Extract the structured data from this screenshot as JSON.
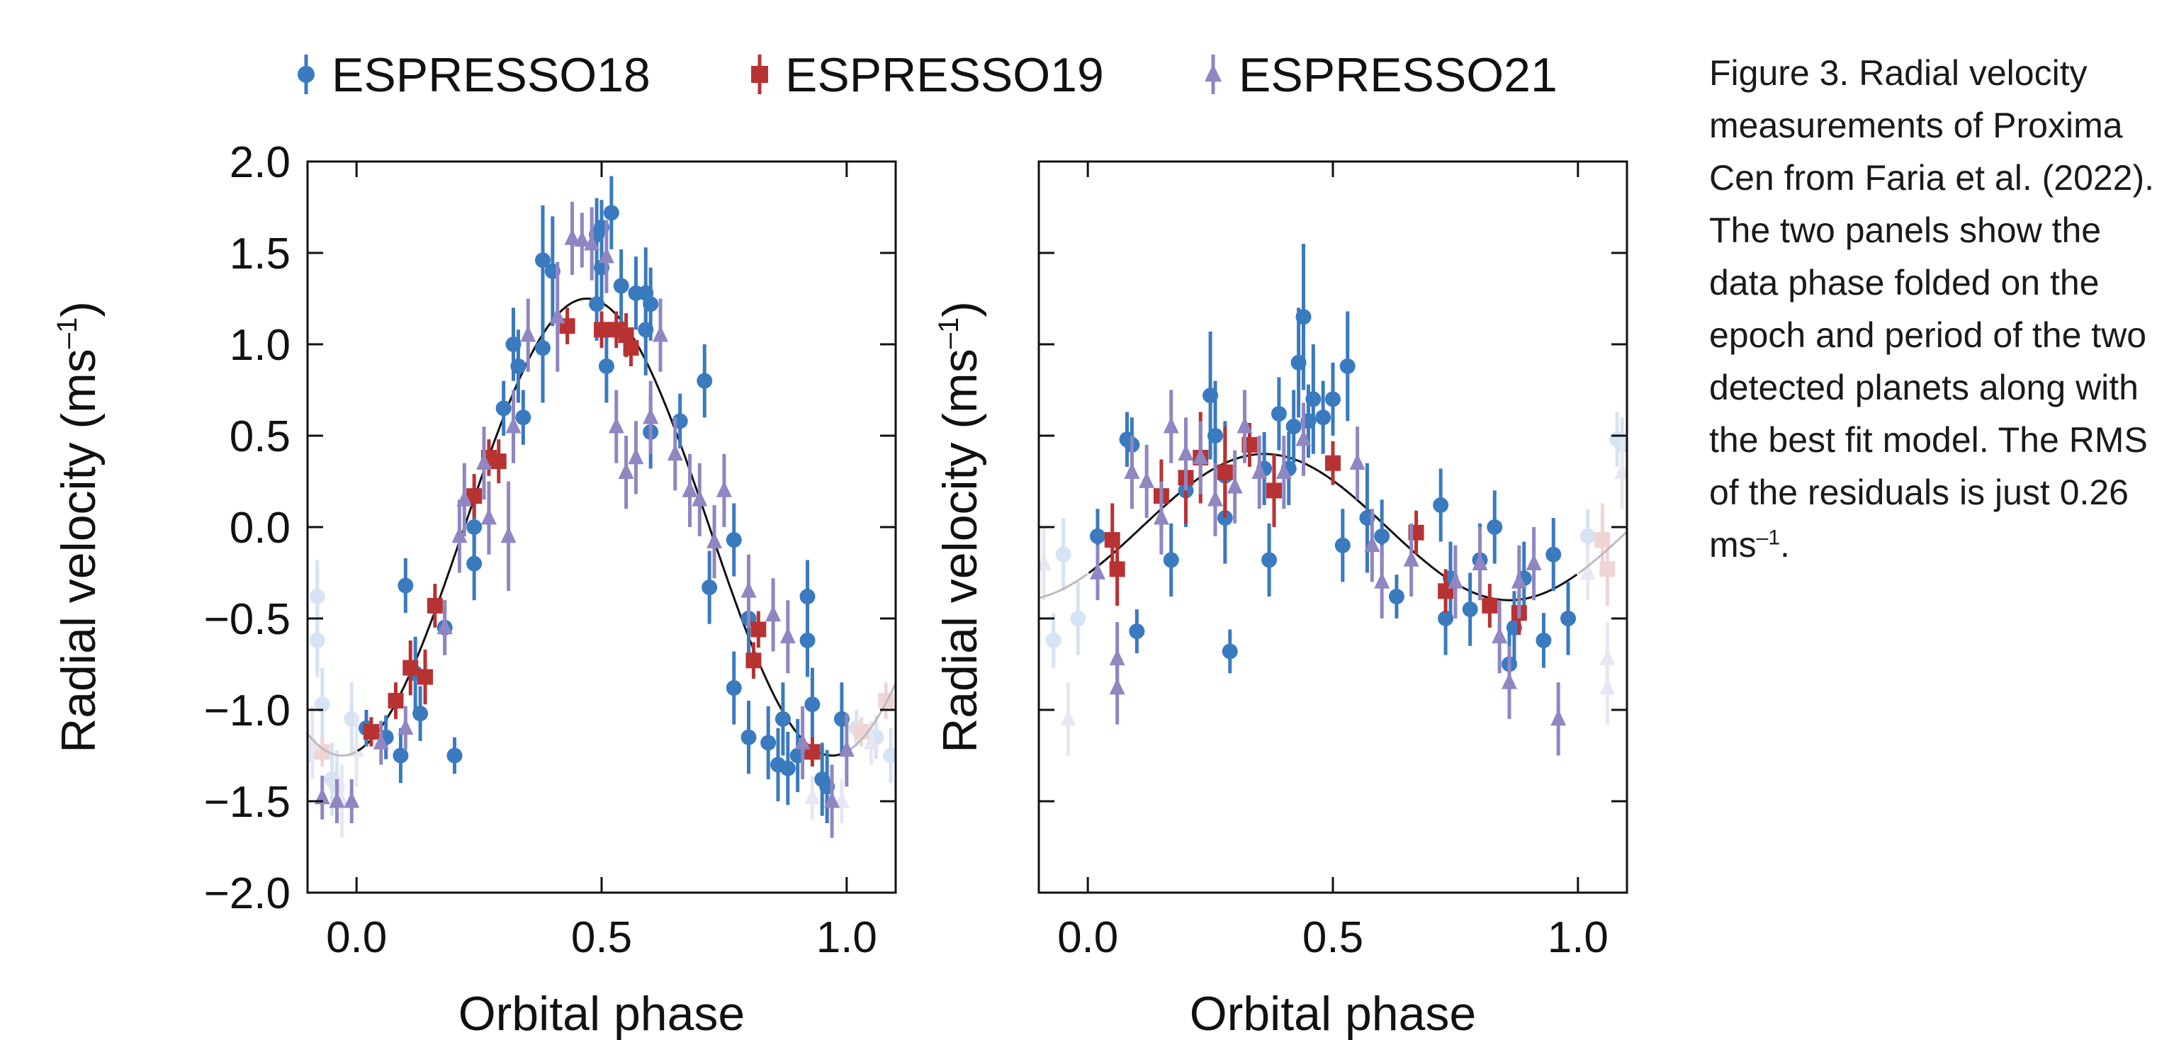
{
  "legend": [
    {
      "label": "ESPRESSO18",
      "color": "#3a7abf",
      "marker": "circle"
    },
    {
      "label": "ESPRESSO19",
      "color": "#b83232",
      "marker": "square"
    },
    {
      "label": "ESPRESSO21",
      "color": "#8f86c2",
      "marker": "triangle"
    }
  ],
  "caption": {
    "label": "Figure 3.",
    "text_before": "Radial velocity measurements of Proxima Cen from Faria et al. (2022). The two panels show the data phase folded on the epoch and period of the two detected planets along with the best fit model. The RMS of the residuals is just 0.26 ms",
    "superscript": "–1",
    "text_after": "."
  },
  "chart_data": [
    {
      "type": "scatter",
      "panel": "left",
      "xlabel": "Orbital phase",
      "ylabel": "Radial velocity (ms",
      "ylabel_sup": "–1",
      "ylabel_end": ")",
      "xlim": [
        -0.1,
        1.1
      ],
      "ylim": [
        -2.0,
        2.0
      ],
      "xticks": [
        0.0,
        0.5,
        1.0
      ],
      "xtick_labels": [
        "0.0",
        "0.5",
        "1.0"
      ],
      "yticks": [
        -2.0,
        -1.5,
        -1.0,
        -0.5,
        0.0,
        0.5,
        1.0,
        1.5,
        2.0
      ],
      "ytick_labels": [
        "−2.0",
        "−1.5",
        "−1.0",
        "−0.5",
        "0.0",
        "0.5",
        "1.0",
        "1.5",
        "2.0"
      ],
      "model": {
        "type": "sinusoid",
        "amplitude": 1.25,
        "center_phase": 0.47
      },
      "series": [
        {
          "name": "ESPRESSO18",
          "color": "#3a7abf",
          "marker": "circle",
          "points": [
            [
              0.02,
              -1.1,
              0.1
            ],
            [
              0.06,
              -1.15,
              0.12
            ],
            [
              0.09,
              -1.25,
              0.15
            ],
            [
              0.1,
              -0.32,
              0.15
            ],
            [
              0.12,
              -0.8,
              0.2
            ],
            [
              0.13,
              -1.02,
              0.15
            ],
            [
              0.18,
              -0.55,
              0.15
            ],
            [
              0.2,
              -1.25,
              0.1
            ],
            [
              0.24,
              0.0,
              0.2
            ],
            [
              0.24,
              -0.2,
              0.2
            ],
            [
              0.3,
              0.65,
              0.15
            ],
            [
              0.32,
              1.0,
              0.2
            ],
            [
              0.33,
              0.88,
              0.2
            ],
            [
              0.34,
              0.6,
              0.15
            ],
            [
              0.38,
              0.98,
              0.3
            ],
            [
              0.38,
              1.46,
              0.3
            ],
            [
              0.4,
              1.4,
              0.3
            ],
            [
              0.49,
              1.6,
              0.2
            ],
            [
              0.49,
              1.22,
              0.2
            ],
            [
              0.5,
              1.64,
              0.15
            ],
            [
              0.5,
              1.42,
              0.2
            ],
            [
              0.51,
              0.88,
              0.2
            ],
            [
              0.52,
              1.72,
              0.2
            ],
            [
              0.54,
              1.32,
              0.2
            ],
            [
              0.57,
              1.28,
              0.2
            ],
            [
              0.59,
              1.08,
              0.25
            ],
            [
              0.59,
              1.28,
              0.25
            ],
            [
              0.6,
              1.22,
              0.2
            ],
            [
              0.6,
              0.52,
              0.2
            ],
            [
              0.66,
              0.58,
              0.15
            ],
            [
              0.71,
              0.8,
              0.2
            ],
            [
              0.72,
              -0.33,
              0.2
            ],
            [
              0.77,
              -0.07,
              0.2
            ],
            [
              0.77,
              -0.88,
              0.2
            ],
            [
              0.8,
              -0.5,
              0.2
            ],
            [
              0.8,
              -1.15,
              0.2
            ],
            [
              0.84,
              -1.18,
              0.2
            ],
            [
              0.86,
              -1.3,
              0.2
            ],
            [
              0.87,
              -1.05,
              0.2
            ],
            [
              0.88,
              -1.32,
              0.2
            ],
            [
              0.9,
              -1.25,
              0.2
            ],
            [
              0.92,
              -0.38,
              0.2
            ],
            [
              0.92,
              -0.62,
              0.2
            ],
            [
              0.93,
              -0.97,
              0.2
            ],
            [
              0.95,
              -1.38,
              0.2
            ],
            [
              0.96,
              -1.42,
              0.2
            ],
            [
              0.99,
              -1.05,
              0.2
            ]
          ]
        },
        {
          "name": "ESPRESSO19",
          "color": "#b83232",
          "marker": "square",
          "points": [
            [
              0.03,
              -1.12,
              0.08
            ],
            [
              0.08,
              -0.95,
              0.1
            ],
            [
              0.11,
              -0.77,
              0.15
            ],
            [
              0.14,
              -0.82,
              0.15
            ],
            [
              0.16,
              -0.43,
              0.12
            ],
            [
              0.24,
              0.17,
              0.12
            ],
            [
              0.27,
              0.38,
              0.1
            ],
            [
              0.29,
              0.36,
              0.12
            ],
            [
              0.43,
              1.1,
              0.1
            ],
            [
              0.5,
              1.08,
              0.1
            ],
            [
              0.53,
              1.08,
              0.1
            ],
            [
              0.55,
              1.05,
              0.12
            ],
            [
              0.56,
              0.98,
              0.1
            ],
            [
              0.81,
              -0.73,
              0.1
            ],
            [
              0.82,
              -0.56,
              0.1
            ],
            [
              0.93,
              -1.23,
              0.08
            ]
          ]
        },
        {
          "name": "ESPRESSO21",
          "color": "#8f86c2",
          "marker": "triangle",
          "points": [
            [
              -0.07,
              -1.48,
              0.12
            ],
            [
              -0.04,
              -1.5,
              0.12
            ],
            [
              -0.01,
              -1.5,
              0.12
            ],
            [
              0.05,
              -1.18,
              0.12
            ],
            [
              0.1,
              -1.1,
              0.12
            ],
            [
              0.18,
              -0.55,
              0.15
            ],
            [
              0.21,
              -0.05,
              0.2
            ],
            [
              0.22,
              0.15,
              0.2
            ],
            [
              0.26,
              0.35,
              0.2
            ],
            [
              0.27,
              0.05,
              0.2
            ],
            [
              0.31,
              -0.05,
              0.3
            ],
            [
              0.32,
              0.55,
              0.2
            ],
            [
              0.35,
              1.05,
              0.2
            ],
            [
              0.41,
              1.15,
              0.3
            ],
            [
              0.44,
              1.58,
              0.2
            ],
            [
              0.46,
              1.57,
              0.15
            ],
            [
              0.48,
              1.55,
              0.2
            ],
            [
              0.51,
              1.48,
              0.2
            ],
            [
              0.53,
              0.55,
              0.2
            ],
            [
              0.55,
              0.3,
              0.2
            ],
            [
              0.57,
              0.38,
              0.2
            ],
            [
              0.6,
              0.6,
              0.2
            ],
            [
              0.62,
              1.05,
              0.2
            ],
            [
              0.65,
              0.4,
              0.2
            ],
            [
              0.68,
              0.2,
              0.2
            ],
            [
              0.7,
              0.15,
              0.2
            ],
            [
              0.73,
              -0.08,
              0.2
            ],
            [
              0.75,
              0.2,
              0.2
            ],
            [
              0.8,
              -0.35,
              0.2
            ],
            [
              0.85,
              -0.48,
              0.2
            ],
            [
              0.88,
              -0.6,
              0.2
            ],
            [
              0.91,
              -1.18,
              0.2
            ],
            [
              0.97,
              -1.5,
              0.2
            ],
            [
              1.0,
              -1.22,
              0.2
            ]
          ]
        }
      ]
    },
    {
      "type": "scatter",
      "panel": "right",
      "xlabel": "Orbital phase",
      "ylabel": "Radial velocity (ms",
      "ylabel_sup": "–1",
      "ylabel_end": ")",
      "xlim": [
        -0.1,
        1.1
      ],
      "ylim": [
        -2.0,
        2.0
      ],
      "xticks": [
        0.0,
        0.5,
        1.0
      ],
      "xtick_labels": [
        "0.0",
        "0.5",
        "1.0"
      ],
      "yticks": [
        -2.0,
        -1.5,
        -1.0,
        -0.5,
        0.0,
        0.5,
        1.0,
        1.5,
        2.0
      ],
      "model": {
        "type": "sinusoid",
        "amplitude": 0.4,
        "center_phase": 0.36
      },
      "series": [
        {
          "name": "ESPRESSO18",
          "color": "#3a7abf",
          "marker": "circle",
          "points": [
            [
              0.02,
              -0.05,
              0.15
            ],
            [
              0.08,
              0.48,
              0.15
            ],
            [
              0.09,
              0.45,
              0.15
            ],
            [
              0.1,
              -0.57,
              0.12
            ],
            [
              0.17,
              -0.18,
              0.2
            ],
            [
              0.2,
              0.2,
              0.2
            ],
            [
              0.25,
              0.72,
              0.35
            ],
            [
              0.26,
              0.5,
              0.3
            ],
            [
              0.28,
              0.05,
              0.25
            ],
            [
              0.28,
              0.28,
              0.3
            ],
            [
              0.29,
              -0.68,
              0.12
            ],
            [
              0.36,
              0.32,
              0.2
            ],
            [
              0.37,
              -0.18,
              0.2
            ],
            [
              0.39,
              0.62,
              0.2
            ],
            [
              0.41,
              0.32,
              0.2
            ],
            [
              0.42,
              0.55,
              0.2
            ],
            [
              0.43,
              0.9,
              0.3
            ],
            [
              0.44,
              1.15,
              0.4
            ],
            [
              0.45,
              0.58,
              0.2
            ],
            [
              0.46,
              0.7,
              0.3
            ],
            [
              0.48,
              0.6,
              0.2
            ],
            [
              0.5,
              0.7,
              0.2
            ],
            [
              0.52,
              -0.1,
              0.2
            ],
            [
              0.53,
              0.88,
              0.3
            ],
            [
              0.57,
              0.05,
              0.3
            ],
            [
              0.6,
              -0.05,
              0.2
            ],
            [
              0.63,
              -0.38,
              0.12
            ],
            [
              0.72,
              0.12,
              0.2
            ],
            [
              0.73,
              -0.5,
              0.2
            ],
            [
              0.74,
              -0.28,
              0.2
            ],
            [
              0.78,
              -0.45,
              0.2
            ],
            [
              0.8,
              -0.18,
              0.2
            ],
            [
              0.83,
              0.0,
              0.2
            ],
            [
              0.86,
              -0.75,
              0.2
            ],
            [
              0.87,
              -0.55,
              0.2
            ],
            [
              0.89,
              -0.28,
              0.2
            ],
            [
              0.93,
              -0.62,
              0.15
            ],
            [
              0.95,
              -0.15,
              0.2
            ],
            [
              0.98,
              -0.5,
              0.2
            ]
          ]
        },
        {
          "name": "ESPRESSO19",
          "color": "#b83232",
          "marker": "square",
          "points": [
            [
              0.05,
              -0.07,
              0.2
            ],
            [
              0.06,
              -0.23,
              0.2
            ],
            [
              0.15,
              0.17,
              0.2
            ],
            [
              0.2,
              0.27,
              0.25
            ],
            [
              0.23,
              0.38,
              0.25
            ],
            [
              0.28,
              0.3,
              0.25
            ],
            [
              0.33,
              0.45,
              0.12
            ],
            [
              0.38,
              0.2,
              0.2
            ],
            [
              0.5,
              0.35,
              0.12
            ],
            [
              0.67,
              -0.03,
              0.12
            ],
            [
              0.73,
              -0.35,
              0.12
            ],
            [
              0.82,
              -0.43,
              0.12
            ],
            [
              0.88,
              -0.47,
              0.12
            ]
          ]
        },
        {
          "name": "ESPRESSO21",
          "color": "#8f86c2",
          "marker": "triangle",
          "points": [
            [
              0.02,
              -0.25,
              0.15
            ],
            [
              0.06,
              -0.72,
              0.2
            ],
            [
              0.06,
              -0.88,
              0.2
            ],
            [
              0.09,
              0.3,
              0.2
            ],
            [
              0.12,
              0.25,
              0.2
            ],
            [
              0.15,
              0.05,
              0.2
            ],
            [
              0.17,
              0.55,
              0.2
            ],
            [
              0.2,
              0.4,
              0.2
            ],
            [
              0.23,
              0.38,
              0.2
            ],
            [
              0.26,
              0.15,
              0.2
            ],
            [
              0.3,
              0.22,
              0.2
            ],
            [
              0.32,
              0.55,
              0.2
            ],
            [
              0.35,
              0.3,
              0.2
            ],
            [
              0.4,
              0.3,
              0.2
            ],
            [
              0.44,
              0.48,
              0.2
            ],
            [
              0.55,
              0.35,
              0.2
            ],
            [
              0.58,
              -0.1,
              0.2
            ],
            [
              0.6,
              -0.3,
              0.2
            ],
            [
              0.66,
              -0.18,
              0.2
            ],
            [
              0.75,
              -0.3,
              0.2
            ],
            [
              0.8,
              -0.2,
              0.2
            ],
            [
              0.84,
              -0.6,
              0.2
            ],
            [
              0.86,
              -0.85,
              0.2
            ],
            [
              0.88,
              -0.3,
              0.2
            ],
            [
              0.91,
              -0.2,
              0.2
            ],
            [
              0.96,
              -1.05,
              0.2
            ]
          ]
        }
      ]
    }
  ]
}
